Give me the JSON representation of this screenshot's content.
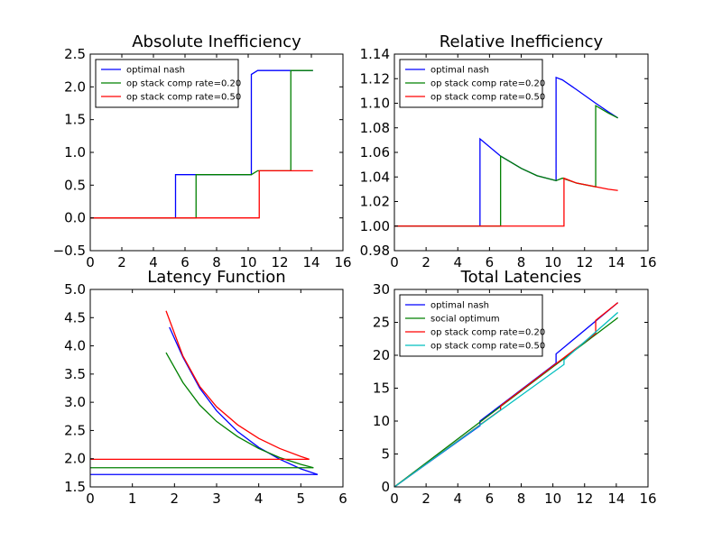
{
  "chart_data": [
    {
      "id": "abs",
      "type": "line",
      "title": "Absolute Inefficiency",
      "xlabel": "",
      "ylabel": "",
      "xlim": [
        0,
        16
      ],
      "ylim": [
        -0.5,
        2.5
      ],
      "xticks": [
        0,
        2,
        4,
        6,
        8,
        10,
        12,
        14,
        16
      ],
      "yticks": [
        -0.5,
        0.0,
        0.5,
        1.0,
        1.5,
        2.0,
        2.5
      ],
      "ytick_labels": [
        "−0.5",
        "0.0",
        "0.5",
        "1.0",
        "1.5",
        "2.0",
        "2.5"
      ],
      "legend": "upper-left",
      "series": [
        {
          "name": "optimal nash",
          "color": "#0000ff",
          "x": [
            0,
            5.4,
            5.4,
            10.2,
            10.2,
            10.6,
            14.1
          ],
          "y": [
            0,
            0,
            0.66,
            0.66,
            2.19,
            2.25,
            2.25
          ]
        },
        {
          "name": "op stack comp rate=0.20",
          "color": "#008000",
          "x": [
            0,
            6.7,
            6.7,
            10.2,
            10.6,
            12.7,
            12.7,
            14.1
          ],
          "y": [
            0,
            0,
            0.66,
            0.66,
            0.72,
            0.72,
            2.25,
            2.25
          ]
        },
        {
          "name": "op stack comp rate=0.50",
          "color": "#ff0000",
          "x": [
            0,
            10.7,
            10.7,
            14.1
          ],
          "y": [
            0,
            0,
            0.72,
            0.72
          ]
        }
      ]
    },
    {
      "id": "rel",
      "type": "line",
      "title": "Relative Inefficiency",
      "xlabel": "",
      "ylabel": "",
      "xlim": [
        0,
        16
      ],
      "ylim": [
        0.98,
        1.14
      ],
      "xticks": [
        0,
        2,
        4,
        6,
        8,
        10,
        12,
        14,
        16
      ],
      "yticks": [
        0.98,
        1.0,
        1.02,
        1.04,
        1.06,
        1.08,
        1.1,
        1.12,
        1.14
      ],
      "ytick_labels": [
        "0.98",
        "1.00",
        "1.02",
        "1.04",
        "1.06",
        "1.08",
        "1.10",
        "1.12",
        "1.14"
      ],
      "legend": "upper-left",
      "series": [
        {
          "name": "optimal nash",
          "color": "#0000ff",
          "x": [
            0,
            5.4,
            5.4,
            6.7,
            8.0,
            9.0,
            10.2,
            10.2,
            10.6,
            11.5,
            12.7,
            13.5,
            14.1
          ],
          "y": [
            1.0,
            1.0,
            1.071,
            1.057,
            1.047,
            1.041,
            1.037,
            1.121,
            1.119,
            1.111,
            1.1,
            1.093,
            1.088
          ]
        },
        {
          "name": "op stack comp rate=0.20",
          "color": "#008000",
          "x": [
            0,
            6.7,
            6.7,
            8.0,
            9.0,
            10.2,
            10.6,
            11.5,
            12.7,
            12.7,
            13.5,
            14.1
          ],
          "y": [
            1.0,
            1.0,
            1.057,
            1.047,
            1.041,
            1.037,
            1.039,
            1.035,
            1.032,
            1.098,
            1.092,
            1.088
          ]
        },
        {
          "name": "op stack comp rate=0.50",
          "color": "#ff0000",
          "x": [
            0,
            10.7,
            10.7,
            11.5,
            12.7,
            13.5,
            14.1
          ],
          "y": [
            1.0,
            1.0,
            1.039,
            1.035,
            1.032,
            1.03,
            1.029
          ]
        }
      ]
    },
    {
      "id": "lat",
      "type": "line",
      "title": "Latency Function",
      "xlabel": "",
      "ylabel": "",
      "xlim": [
        0,
        6
      ],
      "ylim": [
        1.5,
        5.0
      ],
      "xticks": [
        0,
        1,
        2,
        3,
        4,
        5,
        6
      ],
      "yticks": [
        1.5,
        2.0,
        2.5,
        3.0,
        3.5,
        4.0,
        4.5,
        5.0
      ],
      "ytick_labels": [
        "1.5",
        "2.0",
        "2.5",
        "3.0",
        "3.5",
        "4.0",
        "4.5",
        "5.0"
      ],
      "legend": "none",
      "series": [
        {
          "color": "#0000ff",
          "x": [
            1.88,
            2.2,
            2.6,
            3.0,
            3.5,
            4.0,
            4.5,
            5.0,
            5.4
          ],
          "y": [
            4.33,
            3.8,
            3.25,
            2.85,
            2.48,
            2.2,
            1.99,
            1.82,
            1.72
          ]
        },
        {
          "color": "#008000",
          "x": [
            1.8,
            2.2,
            2.6,
            3.0,
            3.5,
            4.0,
            4.5,
            5.0,
            5.3
          ],
          "y": [
            3.88,
            3.35,
            2.95,
            2.66,
            2.39,
            2.18,
            2.02,
            1.9,
            1.84
          ]
        },
        {
          "color": "#ff0000",
          "x": [
            1.8,
            2.2,
            2.6,
            3.0,
            3.5,
            4.0,
            4.5,
            5.0,
            5.2
          ],
          "y": [
            4.62,
            3.82,
            3.28,
            2.92,
            2.6,
            2.36,
            2.18,
            2.04,
            1.99
          ]
        },
        {
          "color": "#0000ff",
          "x": [
            0,
            5.4
          ],
          "y": [
            1.72,
            1.72
          ]
        },
        {
          "color": "#008000",
          "x": [
            0,
            5.3
          ],
          "y": [
            1.84,
            1.84
          ]
        },
        {
          "color": "#ff0000",
          "x": [
            0,
            5.2
          ],
          "y": [
            1.99,
            1.99
          ]
        }
      ]
    },
    {
      "id": "tot",
      "type": "line",
      "title": "Total Latencies",
      "xlabel": "",
      "ylabel": "",
      "xlim": [
        0,
        16
      ],
      "ylim": [
        0,
        30
      ],
      "xticks": [
        0,
        2,
        4,
        6,
        8,
        10,
        12,
        14,
        16
      ],
      "yticks": [
        0,
        5,
        10,
        15,
        20,
        25,
        30
      ],
      "ytick_labels": [
        "0",
        "5",
        "10",
        "15",
        "20",
        "25",
        "30"
      ],
      "legend": "upper-left",
      "series": [
        {
          "name": "optimal nash",
          "color": "#0000ff",
          "x": [
            0,
            5.4,
            5.4,
            10.2,
            10.2,
            14.1
          ],
          "y": [
            0,
            9.3,
            10.0,
            18.8,
            20.2,
            28.0
          ]
        },
        {
          "name": "social optimum",
          "color": "#008000",
          "x": [
            0,
            14.1
          ],
          "y": [
            0,
            25.7
          ]
        },
        {
          "name": "op stack comp rate=0.20",
          "color": "#ff0000",
          "x": [
            0,
            6.7,
            6.7,
            12.7,
            12.7,
            14.1
          ],
          "y": [
            0,
            11.7,
            12.3,
            23.3,
            25.3,
            28.0
          ]
        },
        {
          "name": "op stack comp rate=0.50",
          "color": "#00bfbf",
          "x": [
            0,
            10.7,
            10.7,
            14.1
          ],
          "y": [
            0,
            18.6,
            19.3,
            26.5
          ]
        }
      ]
    }
  ]
}
